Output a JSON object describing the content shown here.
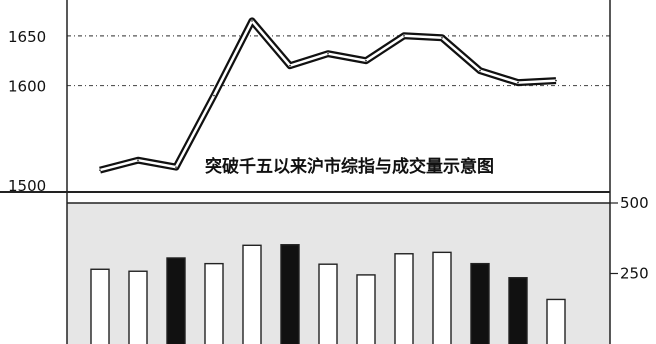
{
  "chart_data": [
    {
      "type": "line",
      "title": "突破千五以来沪市综指与成交量示意图",
      "y_ticks": [
        "1650",
        "1600",
        "1500"
      ],
      "y_tick_values": [
        1650,
        1600,
        1500
      ],
      "ylim": [
        1493,
        1680
      ],
      "grid": true,
      "series": [
        {
          "values": [
            1515,
            1525,
            1518,
            1590,
            1665,
            1620,
            1632,
            1625,
            1650,
            1648,
            1615,
            1603,
            1605
          ]
        }
      ]
    },
    {
      "type": "bar",
      "y_ticks": [
        "500",
        "250"
      ],
      "y_tick_values": [
        500,
        250
      ],
      "ylim": [
        0,
        500
      ],
      "bars": [
        {
          "value": 265,
          "fill": "white"
        },
        {
          "value": 258,
          "fill": "white"
        },
        {
          "value": 305,
          "fill": "black"
        },
        {
          "value": 285,
          "fill": "white"
        },
        {
          "value": 350,
          "fill": "white"
        },
        {
          "value": 352,
          "fill": "black"
        },
        {
          "value": 283,
          "fill": "white"
        },
        {
          "value": 245,
          "fill": "white"
        },
        {
          "value": 320,
          "fill": "white"
        },
        {
          "value": 325,
          "fill": "white"
        },
        {
          "value": 285,
          "fill": "black"
        },
        {
          "value": 235,
          "fill": "black"
        },
        {
          "value": 158,
          "fill": "white"
        }
      ]
    }
  ]
}
